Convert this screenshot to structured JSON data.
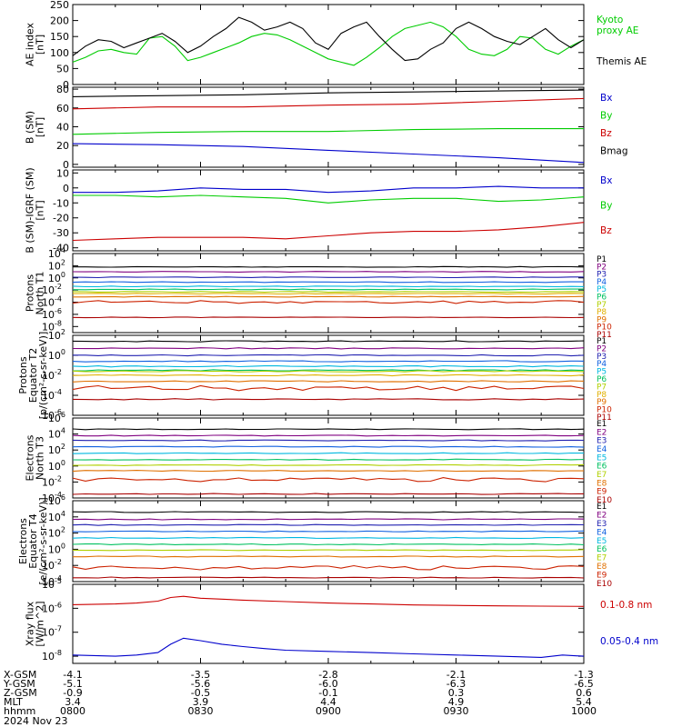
{
  "chart_data": [
    {
      "id": "ae",
      "type": "line",
      "ylabel": [
        "AE index",
        "[nT]"
      ],
      "ylim": [
        0,
        250
      ],
      "yticks": [
        0,
        50,
        100,
        150,
        200,
        250
      ],
      "scale": "linear",
      "legend_placement": "right",
      "series": [
        {
          "name": "Kyoto proxy AE",
          "color": "#00cc00",
          "label_pos": "top",
          "x": [
            0,
            3,
            6,
            9,
            12,
            15,
            18,
            21,
            24,
            27,
            30,
            33,
            36,
            39,
            42,
            45,
            48,
            51,
            54,
            57,
            60,
            63,
            66,
            69,
            72,
            75,
            78,
            81,
            84,
            87,
            90,
            93,
            96,
            99,
            102,
            105,
            108,
            111,
            114,
            117,
            120
          ],
          "y": [
            70,
            85,
            105,
            110,
            100,
            95,
            145,
            150,
            120,
            75,
            85,
            100,
            115,
            130,
            150,
            160,
            155,
            140,
            120,
            100,
            80,
            70,
            60,
            85,
            115,
            150,
            175,
            185,
            195,
            180,
            150,
            110,
            95,
            90,
            110,
            150,
            145,
            110,
            95,
            120,
            140
          ]
        },
        {
          "name": "Themis AE",
          "color": "#000000",
          "label_pos": "bottom",
          "x": [
            0,
            3,
            6,
            9,
            12,
            15,
            18,
            21,
            24,
            27,
            30,
            33,
            36,
            39,
            42,
            45,
            48,
            51,
            54,
            57,
            60,
            63,
            66,
            69,
            72,
            75,
            78,
            81,
            84,
            87,
            90,
            93,
            96,
            99,
            102,
            105,
            108,
            111,
            114,
            117,
            120
          ],
          "y": [
            90,
            120,
            140,
            135,
            115,
            130,
            145,
            160,
            135,
            100,
            120,
            150,
            175,
            210,
            195,
            170,
            180,
            195,
            175,
            130,
            110,
            160,
            180,
            195,
            150,
            110,
            75,
            80,
            110,
            130,
            175,
            195,
            175,
            150,
            135,
            125,
            150,
            175,
            140,
            115,
            140
          ]
        }
      ]
    },
    {
      "id": "bsm",
      "type": "line",
      "ylabel": [
        "B (SM)",
        "[nT]"
      ],
      "ylim": [
        -3,
        82
      ],
      "yticks": [
        0,
        20,
        40,
        60,
        80
      ],
      "scale": "linear",
      "legend_placement": "right",
      "series": [
        {
          "name": "Bx",
          "color": "#0000cc",
          "x": [
            0,
            20,
            40,
            60,
            80,
            100,
            120
          ],
          "y": [
            22,
            21,
            19,
            15,
            11,
            7,
            2
          ]
        },
        {
          "name": "By",
          "color": "#00cc00",
          "x": [
            0,
            20,
            40,
            60,
            80,
            100,
            120
          ],
          "y": [
            32,
            34,
            35,
            35,
            37,
            38,
            38
          ]
        },
        {
          "name": "Bz",
          "color": "#cc0000",
          "x": [
            0,
            20,
            40,
            60,
            80,
            100,
            120
          ],
          "y": [
            59,
            61,
            61,
            63,
            64,
            67,
            70
          ]
        },
        {
          "name": "Bmag",
          "color": "#000000",
          "x": [
            0,
            20,
            40,
            60,
            80,
            100,
            120
          ],
          "y": [
            72,
            73,
            74,
            76,
            77,
            78,
            79
          ]
        }
      ]
    },
    {
      "id": "bdelta",
      "type": "line",
      "ylabel": [
        "B (SM)-IGRF (SM)",
        "[nT]"
      ],
      "ylim": [
        -42,
        12
      ],
      "yticks": [
        -40,
        -30,
        -20,
        -10,
        0,
        10
      ],
      "scale": "linear",
      "legend_placement": "right",
      "series": [
        {
          "name": "Bx",
          "color": "#0000cc",
          "x": [
            0,
            10,
            20,
            30,
            40,
            50,
            60,
            70,
            80,
            90,
            100,
            110,
            120
          ],
          "y": [
            -3,
            -3,
            -2,
            0,
            -1,
            -1,
            -3,
            -2,
            0,
            0,
            1,
            0,
            0
          ]
        },
        {
          "name": "By",
          "color": "#00cc00",
          "x": [
            0,
            10,
            20,
            30,
            40,
            50,
            60,
            70,
            80,
            90,
            100,
            110,
            120
          ],
          "y": [
            -5,
            -5,
            -6,
            -5,
            -6,
            -7,
            -10,
            -8,
            -7,
            -7,
            -9,
            -8,
            -6
          ]
        },
        {
          "name": "Bz",
          "color": "#cc0000",
          "x": [
            0,
            10,
            20,
            30,
            40,
            50,
            60,
            70,
            80,
            90,
            100,
            110,
            120
          ],
          "y": [
            -35,
            -34,
            -33,
            -33,
            -33,
            -34,
            -32,
            -30,
            -29,
            -29,
            -28,
            -26,
            -23
          ]
        }
      ]
    },
    {
      "id": "protons-t1",
      "type": "line",
      "ylabel": [
        "Protons",
        "North T1"
      ],
      "scale": "log",
      "ylim_exp": [
        -9,
        4
      ],
      "ytick_exps": [
        -8,
        -6,
        -4,
        -2,
        0,
        2,
        4
      ],
      "legend_placement": "right",
      "series": [
        {
          "name": "P1",
          "color": "#000000",
          "level": 1.8
        },
        {
          "name": "P2",
          "color": "#800080",
          "level": 1.0
        },
        {
          "name": "P3",
          "color": "#2020b0",
          "level": 0.1
        },
        {
          "name": "P4",
          "color": "#1060e0",
          "level": -0.7
        },
        {
          "name": "P5",
          "color": "#00b8e0",
          "level": -1.4
        },
        {
          "name": "P6",
          "color": "#00c060",
          "level": -1.9
        },
        {
          "name": "P7",
          "color": "#b0d000",
          "level": -2.3
        },
        {
          "name": "P8",
          "color": "#e0b000",
          "level": -2.6
        },
        {
          "name": "P9",
          "color": "#e07000",
          "level": -3.1
        },
        {
          "name": "P10",
          "color": "#cc2200",
          "level": -4.0
        },
        {
          "name": "P11",
          "color": "#aa0000",
          "level": -6.5
        }
      ]
    },
    {
      "id": "protons-t2",
      "type": "line",
      "ylabel": [
        "Protons",
        "Equator T2",
        "[p/(cm²-s-sr-keV)]"
      ],
      "scale": "log",
      "ylim_exp": [
        -6,
        2
      ],
      "ytick_exps": [
        -6,
        -4,
        -2,
        0,
        2
      ],
      "legend_placement": "right",
      "series": [
        {
          "name": "P1",
          "color": "#000000",
          "level": 1.4
        },
        {
          "name": "P2",
          "color": "#800080",
          "level": 0.7
        },
        {
          "name": "P3",
          "color": "#2020b0",
          "level": 0.0
        },
        {
          "name": "P4",
          "color": "#1060e0",
          "level": -0.6
        },
        {
          "name": "P5",
          "color": "#00b8e0",
          "level": -1.1
        },
        {
          "name": "P6",
          "color": "#00c060",
          "level": -1.5
        },
        {
          "name": "P7",
          "color": "#b0d000",
          "level": -1.6
        },
        {
          "name": "P8",
          "color": "#e0b000",
          "level": -2.0
        },
        {
          "name": "P9",
          "color": "#e07000",
          "level": -2.6
        },
        {
          "name": "P10",
          "color": "#cc2200",
          "level": -3.3
        },
        {
          "name": "P11",
          "color": "#aa0000",
          "level": -4.4
        }
      ]
    },
    {
      "id": "electrons-t3",
      "type": "line",
      "ylabel": [
        "Electrons",
        "North T3"
      ],
      "scale": "log",
      "ylim_exp": [
        -4,
        6
      ],
      "ytick_exps": [
        -4,
        -2,
        0,
        2,
        4,
        6
      ],
      "legend_placement": "right",
      "series": [
        {
          "name": "E1",
          "color": "#000000",
          "level": 4.6
        },
        {
          "name": "E2",
          "color": "#800080",
          "level": 3.8
        },
        {
          "name": "E3",
          "color": "#2020b0",
          "level": 3.2
        },
        {
          "name": "E4",
          "color": "#1060e0",
          "level": 2.4
        },
        {
          "name": "E5",
          "color": "#00b8e0",
          "level": 1.6
        },
        {
          "name": "E6",
          "color": "#00c060",
          "level": 0.8
        },
        {
          "name": "E7",
          "color": "#b0d000",
          "level": 0.1
        },
        {
          "name": "E8",
          "color": "#e07000",
          "level": -0.6
        },
        {
          "name": "E9",
          "color": "#cc2200",
          "level": -1.7
        },
        {
          "name": "E10",
          "color": "#aa0000",
          "level": -3.5
        }
      ]
    },
    {
      "id": "electrons-t4",
      "type": "line",
      "ylabel": [
        "Electrons",
        "Equator T4",
        "[e/(cm²-s-sr-keV)]"
      ],
      "scale": "log",
      "ylim_exp": [
        -4,
        6
      ],
      "ytick_exps": [
        -4,
        -2,
        0,
        2,
        4,
        6
      ],
      "legend_placement": "right",
      "series": [
        {
          "name": "E1",
          "color": "#000000",
          "level": 4.6
        },
        {
          "name": "E2",
          "color": "#800080",
          "level": 3.7
        },
        {
          "name": "E3",
          "color": "#2020b0",
          "level": 3.0
        },
        {
          "name": "E4",
          "color": "#1060e0",
          "level": 2.2
        },
        {
          "name": "E5",
          "color": "#00b8e0",
          "level": 1.4
        },
        {
          "name": "E6",
          "color": "#00c060",
          "level": 0.6
        },
        {
          "name": "E7",
          "color": "#b0d000",
          "level": -0.1
        },
        {
          "name": "E8",
          "color": "#e07000",
          "level": -0.9
        },
        {
          "name": "E9",
          "color": "#cc2200",
          "level": -2.3
        },
        {
          "name": "E10",
          "color": "#aa0000",
          "level": -3.5
        }
      ]
    },
    {
      "id": "xray",
      "type": "line",
      "ylabel": [
        "Xray flux",
        "[W/m^2]"
      ],
      "scale": "log",
      "ylim_exp": [
        -8.3,
        -5
      ],
      "ytick_exps": [
        -8,
        -7,
        -6,
        -5
      ],
      "legend_placement": "right",
      "series": [
        {
          "name": "0.1-0.8 nm",
          "color": "#cc0000",
          "x": [
            0,
            10,
            15,
            20,
            23,
            26,
            30,
            35,
            40,
            50,
            60,
            70,
            80,
            90,
            100,
            110,
            120
          ],
          "y": [
            -5.85,
            -5.82,
            -5.78,
            -5.7,
            -5.55,
            -5.5,
            -5.58,
            -5.62,
            -5.66,
            -5.72,
            -5.78,
            -5.82,
            -5.86,
            -5.88,
            -5.9,
            -5.91,
            -5.92
          ]
        },
        {
          "name": "0.05-0.4 nm",
          "color": "#0000cc",
          "x": [
            0,
            10,
            15,
            20,
            23,
            26,
            30,
            35,
            40,
            45,
            50,
            60,
            70,
            80,
            90,
            100,
            110,
            115,
            120
          ],
          "y": [
            -7.95,
            -8.0,
            -7.95,
            -7.85,
            -7.5,
            -7.25,
            -7.35,
            -7.5,
            -7.6,
            -7.68,
            -7.75,
            -7.8,
            -7.85,
            -7.9,
            -7.95,
            -8.0,
            -8.05,
            -7.95,
            -8.0
          ]
        }
      ]
    }
  ],
  "footer": {
    "rows": [
      {
        "label": "X-GSM",
        "values": [
          "-4.1",
          "-3.5",
          "-2.8",
          "-2.1",
          "-1.3"
        ]
      },
      {
        "label": "Y-GSM",
        "values": [
          "-5.1",
          "-5.6",
          "-6.0",
          "-6.3",
          "-6.5"
        ]
      },
      {
        "label": "Z-GSM",
        "values": [
          "-0.9",
          "-0.5",
          "-0.1",
          "0.3",
          "0.6"
        ]
      },
      {
        "label": "MLT",
        "values": [
          "3.4",
          "3.9",
          "4.4",
          "4.9",
          "5.4"
        ]
      },
      {
        "label": "hhmm",
        "values": [
          "0800",
          "0830",
          "0900",
          "0930",
          "1000"
        ]
      }
    ],
    "date": "2024 Nov 23"
  }
}
